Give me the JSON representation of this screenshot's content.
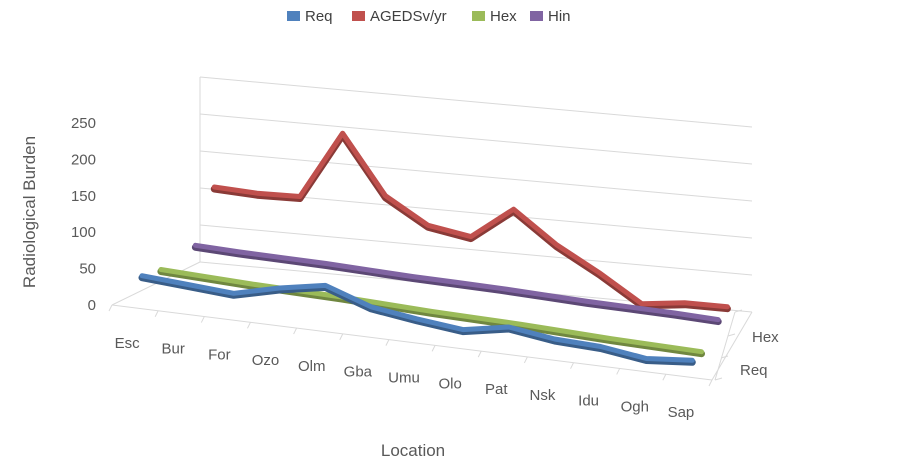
{
  "chart_data": {
    "type": "line",
    "title": "",
    "xlabel": "Location",
    "ylabel": "Radiological Burden",
    "ylim": [
      0,
      250
    ],
    "yticks": [
      0,
      50,
      100,
      150,
      200,
      250
    ],
    "grid": true,
    "legend_position": "top",
    "categories": [
      "Esc",
      "Bur",
      "For",
      "Ozo",
      "Olm",
      "Gba",
      "Umu",
      "Olo",
      "Pat",
      "Nsk",
      "Idu",
      "Ogh",
      "Sap"
    ],
    "depth_labels": [
      "Hex",
      "Req"
    ],
    "series": [
      {
        "name": "Req",
        "color": "#4f81bd",
        "values": [
          45,
          40,
          35,
          52,
          65,
          40,
          30,
          22,
          35,
          25,
          22,
          12,
          18
        ]
      },
      {
        "name": "AGEDSv/yr",
        "color": "#c0504d",
        "values": [
          110,
          107,
          108,
          200,
          120,
          85,
          75,
          118,
          75,
          42,
          5,
          12,
          12
        ]
      },
      {
        "name": "Hex",
        "color": "#9bbb59",
        "values": [
          38,
          35,
          32,
          30,
          28,
          25,
          22,
          20,
          18,
          15,
          12,
          10,
          8
        ]
      },
      {
        "name": "Hin",
        "color": "#8064a2",
        "values": [
          45,
          42,
          40,
          38,
          35,
          32,
          30,
          28,
          25,
          22,
          20,
          18,
          15
        ]
      }
    ]
  }
}
